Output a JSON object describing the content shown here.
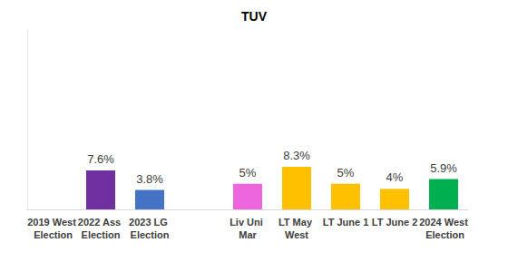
{
  "chart_data": {
    "type": "bar",
    "title": "TUV",
    "categories": [
      "2019 West Election",
      "2022 Ass Election",
      "2023 LG Election",
      null,
      "Liv Uni Mar",
      "LT May West",
      "LT June 1",
      "LT June 2",
      "2024 West Election"
    ],
    "values": [
      null,
      7.6,
      3.8,
      null,
      5,
      8.3,
      5,
      4,
      5.9
    ],
    "value_labels": [
      null,
      "7.6%",
      "3.8%",
      null,
      "5%",
      "8.3%",
      "5%",
      "4%",
      "5.9%"
    ],
    "colors": [
      null,
      "#7030a0",
      "#4472c4",
      null,
      "#ee66dd",
      "#ffc000",
      "#ffc000",
      "#ffc000",
      "#00b050"
    ],
    "ylim": [
      0,
      35
    ],
    "grid": false,
    "data_labels": true,
    "tick_labels": "x"
  }
}
